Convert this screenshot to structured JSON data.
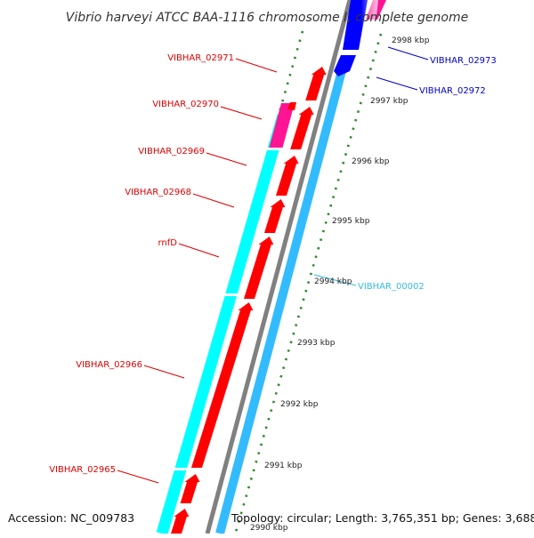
{
  "title": "Vibrio harveyi ATCC BAA-1116 chromosome I, complete genome",
  "accession": "Accession: NC_009783",
  "topology": "Topology: circular; Length: 3,765,351 bp; Genes: 3,688",
  "colors": {
    "forward_cds": "#ff0000",
    "reverse_cds": "#0000ff",
    "rna": "#ff1493",
    "outer_track": "#00ffff",
    "inner_track": "#33bbff",
    "backbone": "#808080",
    "ticks": "#008000",
    "forward_label": "#e00000",
    "reverse_label": "#0000cc",
    "inner_label": "#33bbdd"
  },
  "ticks": [
    "2998 kbp",
    "2997 kbp",
    "2996 kbp",
    "2995 kbp",
    "2994 kbp",
    "2993 kbp",
    "2992 kbp",
    "2991 kbp",
    "2990 kbp"
  ],
  "genes": [
    {
      "label": "VIBHAR_02971",
      "strand": "forward"
    },
    {
      "label": "VIBHAR_02970",
      "strand": "forward"
    },
    {
      "label": "VIBHAR_02969",
      "strand": "forward"
    },
    {
      "label": "VIBHAR_02968",
      "strand": "forward"
    },
    {
      "label": "rnfD",
      "strand": "forward"
    },
    {
      "label": "VIBHAR_02966",
      "strand": "forward"
    },
    {
      "label": "VIBHAR_02965",
      "strand": "forward"
    },
    {
      "label": "VIBHAR_02973",
      "strand": "reverse"
    },
    {
      "label": "VIBHAR_02972",
      "strand": "reverse"
    },
    {
      "label": "VIBHAR_00002",
      "strand": "inner"
    }
  ]
}
